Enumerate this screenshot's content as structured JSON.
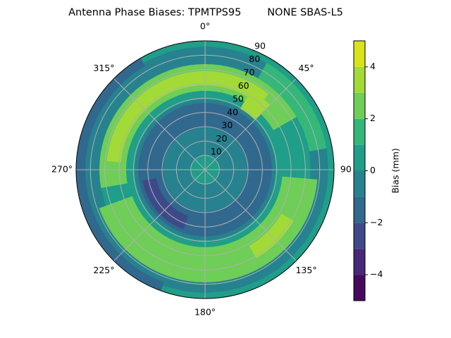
{
  "chart_data": {
    "type": "polar_contour",
    "title": "Antenna Phase Biases: TPMTPS95        NONE SBAS-L5",
    "theta_direction": "clockwise",
    "theta_zero": "top",
    "thetaticks": [
      {
        "value": 0,
        "label": "0°"
      },
      {
        "value": 45,
        "label": "45°"
      },
      {
        "value": 90,
        "label": "90°"
      },
      {
        "value": 135,
        "label": "135°"
      },
      {
        "value": 180,
        "label": "180°"
      },
      {
        "value": 225,
        "label": "225°"
      },
      {
        "value": 270,
        "label": "270°"
      },
      {
        "value": 315,
        "label": "315°"
      }
    ],
    "rlim": [
      0,
      90
    ],
    "rticks": [
      10,
      20,
      30,
      40,
      50,
      60,
      70,
      80,
      90
    ],
    "grid": true,
    "colorbar": {
      "label": "Bias (mm)",
      "clim": [
        -5,
        5
      ],
      "levels": [
        -5,
        -4,
        -3,
        -2,
        -1,
        0,
        1,
        2,
        3,
        4,
        5
      ],
      "colors": [
        "#450a5c",
        "#482878",
        "#3e4989",
        "#31688e",
        "#26828e",
        "#1f9e89",
        "#35b779",
        "#6ece58",
        "#a2da37",
        "#dae319"
      ],
      "ticks": [
        {
          "value": -4,
          "label": "−4"
        },
        {
          "value": -2,
          "label": "−2"
        },
        {
          "value": 0,
          "label": "0"
        },
        {
          "value": 2,
          "label": "2"
        },
        {
          "value": 4,
          "label": "4"
        }
      ]
    }
  }
}
